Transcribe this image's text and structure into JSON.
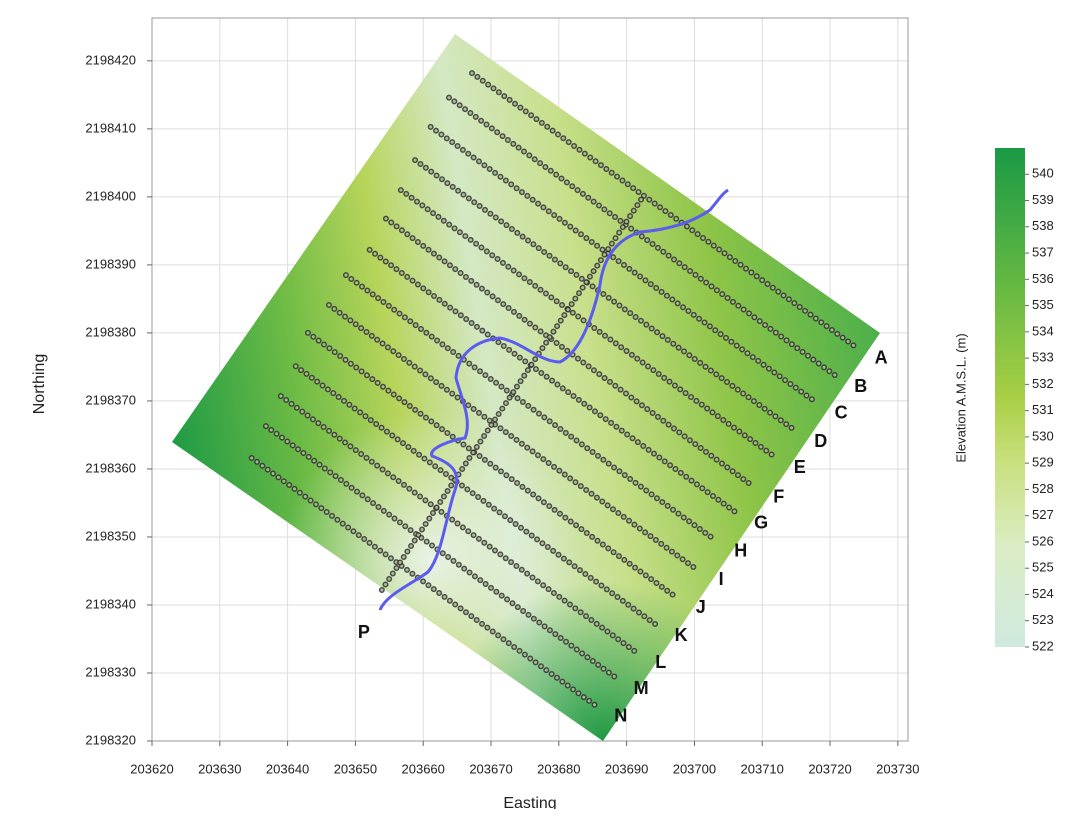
{
  "chart_data": {
    "type": "survey_map",
    "xlabel": "Easting",
    "ylabel": "Northing",
    "colorbar_label": "Elevation A.M.S.L. (m)",
    "xlim": [
      203620,
      203731.5
    ],
    "ylim": [
      2198320,
      2198426.3
    ],
    "xticks": [
      203620,
      203630,
      203640,
      203650,
      203660,
      203670,
      203680,
      203690,
      203700,
      203710,
      203720,
      203730
    ],
    "yticks": [
      2198320,
      2198330,
      2198340,
      2198350,
      2198360,
      2198370,
      2198380,
      2198390,
      2198400,
      2198410,
      2198420
    ],
    "grid": true,
    "clim": [
      522,
      541
    ],
    "cticks": [
      522,
      523,
      524,
      525,
      526,
      527,
      528,
      529,
      530,
      531,
      532,
      533,
      534,
      535,
      536,
      537,
      538,
      539,
      540
    ],
    "line_color": "#333333",
    "lines": [
      {
        "label": "A",
        "x": [
          203667.2,
          203723.7
        ],
        "y": [
          2198418.2,
          2198378.0
        ]
      },
      {
        "label": "B",
        "x": [
          203663.8,
          203720.7
        ],
        "y": [
          2198414.6,
          2198373.8
        ]
      },
      {
        "label": "C",
        "x": [
          203661.1,
          203717.8
        ],
        "y": [
          2198410.3,
          2198369.9
        ]
      },
      {
        "label": "D",
        "x": [
          203658.8,
          203714.8
        ],
        "y": [
          2198405.4,
          2198365.7
        ]
      },
      {
        "label": "E",
        "x": [
          203656.7,
          203711.7
        ],
        "y": [
          2198401.0,
          2198361.9
        ]
      },
      {
        "label": "F",
        "x": [
          203654.5,
          203708.6
        ],
        "y": [
          2198396.8,
          2198357.5
        ]
      },
      {
        "label": "G",
        "x": [
          203652.1,
          203706.0
        ],
        "y": [
          2198392.2,
          2198353.7
        ]
      },
      {
        "label": "H",
        "x": [
          203648.6,
          203703.0
        ],
        "y": [
          2198388.5,
          2198349.6
        ]
      },
      {
        "label": "I",
        "x": [
          203646.1,
          203700.1
        ],
        "y": [
          2198384.1,
          2198345.4
        ]
      },
      {
        "label": "J",
        "x": [
          203643.0,
          203697.1
        ],
        "y": [
          2198380.0,
          2198341.3
        ]
      },
      {
        "label": "K",
        "x": [
          203641.2,
          203694.2
        ],
        "y": [
          2198375.1,
          2198337.2
        ]
      },
      {
        "label": "L",
        "x": [
          203639.0,
          203691.2
        ],
        "y": [
          2198370.7,
          2198333.2
        ]
      },
      {
        "label": "M",
        "x": [
          203636.8,
          203688.3
        ],
        "y": [
          2198366.3,
          2198329.4
        ]
      },
      {
        "label": "N",
        "x": [
          203634.7,
          203685.3
        ],
        "y": [
          2198361.6,
          2198325.3
        ]
      }
    ],
    "cross_line": {
      "label": "P",
      "x": [
        203653.9,
        203692.4
      ],
      "y": [
        2198342.2,
        2198400.0
      ]
    }
  }
}
